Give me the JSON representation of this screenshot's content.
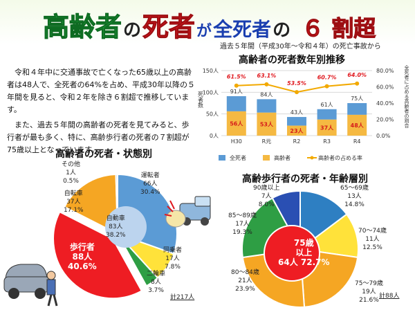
{
  "title": {
    "part1": "高齢者",
    "part2": "の",
    "part3": "死者",
    "part4": "が",
    "part5": "全死者",
    "part6": "の",
    "part7": "６ 割超",
    "subtitle": "過去５年間（平成30年～令和４年）の死亡事故から"
  },
  "intro": {
    "p1": "令和４年中に交通事故で亡くなった65歳以上の高齢者は48人で、全死者の64%を占め、平成30年以降の５年間を見ると、令和２年を除き６割超で推移しています。",
    "p2": "また、過去５年間の高齢者の死者を見てみると、歩行者が最も多く、特に、高齢歩行者の死者の７割超が75歳以上となっています。"
  },
  "bar_chart": {
    "title": "高齢者の死者数年別推移",
    "left_axis_title": "死者数",
    "right_axis_title": "全死者に占める高齢者の割合",
    "left_ticks": [
      "150人",
      "100人",
      "50人",
      "0人"
    ],
    "right_ticks": [
      "80.0%",
      "60.0%",
      "40.0%",
      "20.0%",
      "0.0%"
    ],
    "legend": [
      "全死者",
      "高齢者",
      "高齢者の占める率"
    ]
  },
  "chart_data": [
    {
      "type": "bar",
      "title": "高齢者の死者数年別推移",
      "categories": [
        "H30",
        "R元",
        "R2",
        "R3",
        "R4"
      ],
      "ylim": [
        0,
        150
      ],
      "y2lim": [
        0,
        80
      ],
      "series": [
        {
          "name": "全死者",
          "values": [
            91,
            84,
            43,
            61,
            75
          ],
          "labels": [
            "91人",
            "84人",
            "43人",
            "61人",
            "75人"
          ],
          "color": "#5b9bd5"
        },
        {
          "name": "高齢者",
          "values": [
            56,
            53,
            23,
            37,
            48
          ],
          "labels": [
            "56人",
            "53人",
            "23人",
            "37人",
            "48人"
          ],
          "color": "#f5b942"
        },
        {
          "name": "高齢者の占める率",
          "values": [
            61.5,
            63.1,
            53.5,
            60.7,
            64.0
          ],
          "labels": [
            "61.5%",
            "63.1%",
            "53.5%",
            "60.7%",
            "64.0%"
          ],
          "color": "#f2a900"
        }
      ]
    },
    {
      "type": "pie",
      "title": "高齢者の死者・状態別",
      "slices": [
        {
          "name": "運転者",
          "value": 66,
          "pct": 30.4,
          "color": "#5b9bd5"
        },
        {
          "name": "同乗者",
          "value": 17,
          "pct": 7.8,
          "color": "#ffe23a"
        },
        {
          "name": "二輪車",
          "value": 8,
          "pct": 3.7,
          "color": "#2e9e44"
        },
        {
          "name": "歩行者",
          "value": 88,
          "pct": 40.6,
          "color": "#ee1d23"
        },
        {
          "name": "自転車",
          "value": 37,
          "pct": 17.1,
          "color": "#f5a623"
        },
        {
          "name": "その他",
          "value": 1,
          "pct": 0.5,
          "color": "#a9c8e8"
        }
      ],
      "total": "計217人"
    },
    {
      "type": "pie",
      "title": "高齢歩行者の死者・年齢層別",
      "slices": [
        {
          "name": "65～69歳",
          "value": 13,
          "pct": 14.8,
          "color": "#2e7fc2"
        },
        {
          "name": "70～74歳",
          "value": 11,
          "pct": 12.5,
          "color": "#ffe23a"
        },
        {
          "name": "75～79歳",
          "value": 19,
          "pct": 21.6,
          "color": "#f5a623"
        },
        {
          "name": "80～84歳",
          "value": 21,
          "pct": 23.9,
          "color": "#f5a623"
        },
        {
          "name": "85～89歳",
          "value": 17,
          "pct": 19.3,
          "color": "#2e9e44"
        },
        {
          "name": "90歳以上",
          "value": 7,
          "pct": 8.0,
          "color": "#2a4fb3"
        }
      ],
      "center": {
        "line1": "75歳",
        "line2": "以上",
        "count": "64人",
        "pct": "72.7%"
      },
      "total": "計88人"
    }
  ],
  "pie1_labels": {
    "driver": "運転者\n66人\n30.4%",
    "passenger": "同乗者\n17人\n7.8%",
    "moto": "二輪車\n8人\n3.7%",
    "ped": "歩行者\n88人\n40.6%",
    "bike": "自転車\n37人\n17.1%",
    "other": "その他\n1人\n0.5%",
    "center": "自動車\n83人\n38.2%"
  },
  "pie2_labels": {
    "a": "65～69歳\n13人\n14.8%",
    "b": "70～74歳\n11人\n12.5%",
    "c": "75～79歳\n19人\n21.6%",
    "d": "80～84歳\n21人\n23.9%",
    "e": "85～89歳\n17人\n19.3%",
    "f": "90歳以上\n7人\n8.0%"
  }
}
